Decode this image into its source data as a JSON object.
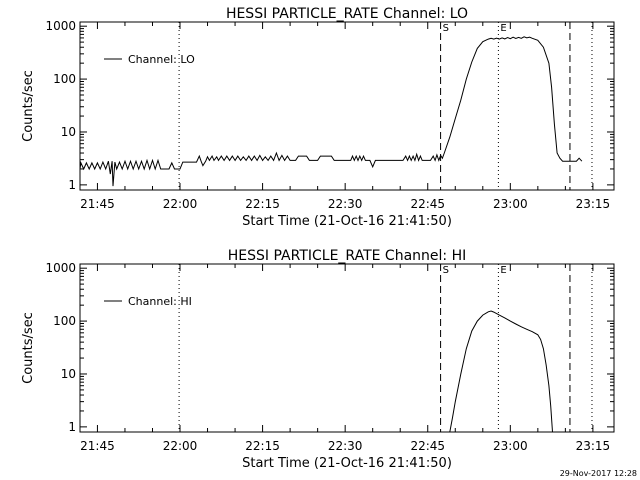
{
  "footer_timestamp": "29-Nov-2017 12:28",
  "chart_data": [
    {
      "type": "line",
      "title": "HESSI PARTICLE_RATE Channel: LO",
      "xlabel": "Start Time (21-Oct-16 21:41:50)",
      "ylabel": "Counts/sec",
      "yscale": "log",
      "xlim": [
        "21:41:50",
        "23:18:50"
      ],
      "ylim": [
        0.8,
        1200
      ],
      "xticks": [
        "21:45",
        "22:00",
        "22:15",
        "22:30",
        "22:45",
        "23:00",
        "23:15"
      ],
      "yticks": [
        {
          "value": 1,
          "label": "1"
        },
        {
          "value": 10,
          "label": "10"
        },
        {
          "value": 100,
          "label": "100"
        },
        {
          "value": 1000,
          "label": "1000"
        }
      ],
      "legend": {
        "position": "top-left",
        "entries": [
          "Channel: LO"
        ]
      },
      "grid": false,
      "markers": [
        {
          "time": "21:59:50",
          "style": "dotted",
          "label": ""
        },
        {
          "time": "22:47:20",
          "style": "dashed",
          "label": "S"
        },
        {
          "time": "22:57:50",
          "style": "dotted",
          "label": "E"
        },
        {
          "time": "23:10:50",
          "style": "dashed",
          "label": ""
        },
        {
          "time": "23:14:50",
          "style": "dotted",
          "label": ""
        }
      ],
      "series": [
        {
          "name": "Channel: LO",
          "points": [
            [
              "21:41:50",
              2
            ],
            [
              "21:42:00",
              2.6
            ],
            [
              "21:42:30",
              2
            ],
            [
              "21:43:00",
              2.6
            ],
            [
              "21:43:30",
              2
            ],
            [
              "21:44:00",
              2.6
            ],
            [
              "21:44:30",
              2
            ],
            [
              "21:45:00",
              2.6
            ],
            [
              "21:45:30",
              2
            ],
            [
              "21:46:00",
              2.7
            ],
            [
              "21:46:30",
              2
            ],
            [
              "21:47:00",
              2.8
            ],
            [
              "21:47:20",
              1.6
            ],
            [
              "21:47:40",
              2.8
            ],
            [
              "21:47:50",
              0.95
            ],
            [
              "21:48:10",
              2.7
            ],
            [
              "21:48:30",
              2
            ],
            [
              "21:49:00",
              2.7
            ],
            [
              "21:49:30",
              2
            ],
            [
              "21:50:00",
              2.8
            ],
            [
              "21:50:30",
              2
            ],
            [
              "21:51:00",
              2.8
            ],
            [
              "21:51:30",
              2
            ],
            [
              "21:52:00",
              2.8
            ],
            [
              "21:52:30",
              2
            ],
            [
              "21:53:00",
              2.8
            ],
            [
              "21:53:30",
              2
            ],
            [
              "21:54:00",
              2.9
            ],
            [
              "21:54:30",
              2
            ],
            [
              "21:55:00",
              2.9
            ],
            [
              "21:55:30",
              2
            ],
            [
              "21:56:00",
              2.9
            ],
            [
              "21:56:30",
              2
            ],
            [
              "21:57:00",
              2
            ],
            [
              "21:58:00",
              2
            ],
            [
              "21:58:30",
              2.6
            ],
            [
              "21:59:00",
              2
            ],
            [
              "22:00:00",
              2
            ],
            [
              "22:00:30",
              2.7
            ],
            [
              "22:01:30",
              2.7
            ],
            [
              "22:02:00",
              2.7
            ],
            [
              "22:03:00",
              2.7
            ],
            [
              "22:03:30",
              3.5
            ],
            [
              "22:03:50",
              2.8
            ],
            [
              "22:04:10",
              2.3
            ],
            [
              "22:04:40",
              2.8
            ],
            [
              "22:05:00",
              3.4
            ],
            [
              "22:05:20",
              2.9
            ],
            [
              "22:05:50",
              3.5
            ],
            [
              "22:06:10",
              2.9
            ],
            [
              "22:06:40",
              3.4
            ],
            [
              "22:07:00",
              2.9
            ],
            [
              "22:07:30",
              3.5
            ],
            [
              "22:08:00",
              2.9
            ],
            [
              "22:08:30",
              3.5
            ],
            [
              "22:09:00",
              2.9
            ],
            [
              "22:09:30",
              3.5
            ],
            [
              "22:10:00",
              2.9
            ],
            [
              "22:10:30",
              3.5
            ],
            [
              "22:11:00",
              2.9
            ],
            [
              "22:11:30",
              3.4
            ],
            [
              "22:12:00",
              2.9
            ],
            [
              "22:12:30",
              3.5
            ],
            [
              "22:13:00",
              2.9
            ],
            [
              "22:13:30",
              3.5
            ],
            [
              "22:14:00",
              2.9
            ],
            [
              "22:14:30",
              3.6
            ],
            [
              "22:15:00",
              2.9
            ],
            [
              "22:15:30",
              3.4
            ],
            [
              "22:16:00",
              2.9
            ],
            [
              "22:16:30",
              3.5
            ],
            [
              "22:17:00",
              2.9
            ],
            [
              "22:17:30",
              4
            ],
            [
              "22:18:00",
              2.9
            ],
            [
              "22:18:30",
              3.6
            ],
            [
              "22:19:00",
              2.9
            ],
            [
              "22:19:30",
              3.5
            ],
            [
              "22:20:00",
              2.9
            ],
            [
              "22:21:00",
              2.9
            ],
            [
              "22:21:30",
              3.5
            ],
            [
              "22:23:00",
              3.5
            ],
            [
              "22:23:30",
              2.9
            ],
            [
              "22:25:00",
              2.9
            ],
            [
              "22:25:30",
              3.5
            ],
            [
              "22:27:30",
              3.5
            ],
            [
              "22:28:00",
              2.9
            ],
            [
              "22:31:00",
              2.9
            ],
            [
              "22:31:20",
              3.5
            ],
            [
              "22:31:40",
              2.9
            ],
            [
              "22:32:00",
              3.5
            ],
            [
              "22:32:20",
              2.9
            ],
            [
              "22:32:40",
              3.5
            ],
            [
              "22:33:00",
              2.9
            ],
            [
              "22:33:20",
              3.5
            ],
            [
              "22:33:40",
              2.9
            ],
            [
              "22:34:30",
              2.9
            ],
            [
              "22:35:00",
              2.2
            ],
            [
              "22:35:30",
              2.9
            ],
            [
              "22:36:30",
              2.9
            ],
            [
              "22:40:30",
              2.9
            ],
            [
              "22:41:00",
              3.5
            ],
            [
              "22:41:20",
              2.9
            ],
            [
              "22:41:40",
              3.5
            ],
            [
              "22:42:00",
              2.9
            ],
            [
              "22:42:20",
              3.5
            ],
            [
              "22:42:40",
              2.9
            ],
            [
              "22:43:00",
              3.8
            ],
            [
              "22:43:20",
              2.9
            ],
            [
              "22:43:40",
              3.5
            ],
            [
              "22:44:00",
              2.9
            ],
            [
              "22:45:30",
              2.9
            ],
            [
              "22:46:00",
              3.5
            ],
            [
              "22:46:20",
              2.9
            ],
            [
              "22:46:40",
              3.7
            ],
            [
              "22:47:00",
              2.9
            ],
            [
              "22:47:20",
              3.6
            ],
            [
              "22:47:40",
              3.2
            ],
            [
              "22:48:00",
              4
            ],
            [
              "22:49:00",
              8
            ],
            [
              "22:50:00",
              18
            ],
            [
              "22:51:00",
              40
            ],
            [
              "22:52:00",
              100
            ],
            [
              "22:53:00",
              210
            ],
            [
              "22:54:00",
              380
            ],
            [
              "22:55:00",
              510
            ],
            [
              "22:56:00",
              570
            ],
            [
              "22:56:30",
              590
            ],
            [
              "22:57:00",
              570
            ],
            [
              "22:57:30",
              595
            ],
            [
              "22:58:00",
              570
            ],
            [
              "22:58:30",
              600
            ],
            [
              "22:59:00",
              575
            ],
            [
              "22:59:30",
              610
            ],
            [
              "23:00:00",
              580
            ],
            [
              "23:00:30",
              620
            ],
            [
              "23:01:00",
              585
            ],
            [
              "23:01:30",
              615
            ],
            [
              "23:02:00",
              590
            ],
            [
              "23:02:30",
              630
            ],
            [
              "23:03:00",
              600
            ],
            [
              "23:03:30",
              620
            ],
            [
              "23:04:00",
              590
            ],
            [
              "23:05:00",
              540
            ],
            [
              "23:06:00",
              400
            ],
            [
              "23:07:00",
              200
            ],
            [
              "23:07:30",
              70
            ],
            [
              "23:08:00",
              14
            ],
            [
              "23:08:30",
              4
            ],
            [
              "23:09:00",
              3.2
            ],
            [
              "23:09:30",
              2.8
            ],
            [
              "23:12:00",
              2.8
            ],
            [
              "23:12:30",
              3.2
            ],
            [
              "23:13:00",
              2.8
            ]
          ]
        }
      ]
    },
    {
      "type": "line",
      "title": "HESSI PARTICLE_RATE Channel: HI",
      "xlabel": "Start Time (21-Oct-16 21:41:50)",
      "ylabel": "Counts/sec",
      "yscale": "log",
      "xlim": [
        "21:41:50",
        "23:18:50"
      ],
      "ylim": [
        0.8,
        1200
      ],
      "xticks": [
        "21:45",
        "22:00",
        "22:15",
        "22:30",
        "22:45",
        "23:00",
        "23:15"
      ],
      "yticks": [
        {
          "value": 1,
          "label": "1"
        },
        {
          "value": 10,
          "label": "10"
        },
        {
          "value": 100,
          "label": "100"
        },
        {
          "value": 1000,
          "label": "1000"
        }
      ],
      "legend": {
        "position": "top-left",
        "entries": [
          "Channel: HI"
        ]
      },
      "grid": false,
      "markers": [
        {
          "time": "21:59:50",
          "style": "dotted",
          "label": ""
        },
        {
          "time": "22:47:20",
          "style": "dashed",
          "label": "S"
        },
        {
          "time": "22:57:50",
          "style": "dotted",
          "label": "E"
        },
        {
          "time": "23:10:50",
          "style": "dashed",
          "label": ""
        },
        {
          "time": "23:14:50",
          "style": "dotted",
          "label": ""
        }
      ],
      "series": [
        {
          "name": "Channel: HI",
          "points": [
            [
              "22:49:00",
              0.8
            ],
            [
              "22:49:30",
              1.5
            ],
            [
              "22:50:00",
              3
            ],
            [
              "22:51:00",
              10
            ],
            [
              "22:52:00",
              30
            ],
            [
              "22:53:00",
              65
            ],
            [
              "22:54:00",
              100
            ],
            [
              "22:55:00",
              130
            ],
            [
              "22:56:00",
              150
            ],
            [
              "22:56:30",
              155
            ],
            [
              "22:57:00",
              148
            ],
            [
              "22:58:00",
              130
            ],
            [
              "22:59:00",
              115
            ],
            [
              "23:00:00",
              100
            ],
            [
              "23:01:00",
              88
            ],
            [
              "23:02:00",
              78
            ],
            [
              "23:03:00",
              70
            ],
            [
              "23:04:00",
              63
            ],
            [
              "23:05:00",
              55
            ],
            [
              "23:05:30",
              45
            ],
            [
              "23:06:00",
              30
            ],
            [
              "23:06:30",
              15
            ],
            [
              "23:07:00",
              6
            ],
            [
              "23:07:20",
              2.5
            ],
            [
              "23:07:40",
              0.8
            ]
          ]
        }
      ]
    }
  ]
}
